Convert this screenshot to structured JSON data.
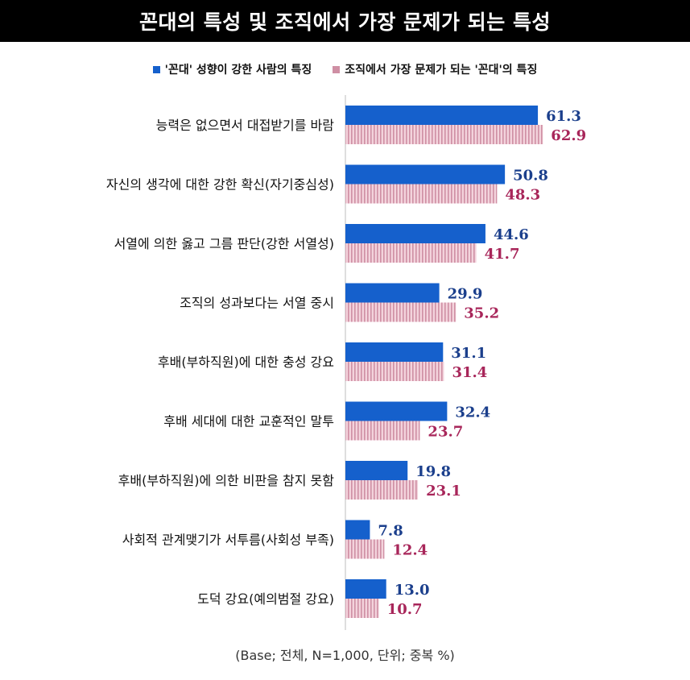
{
  "title": "꼰대의 특성 및 조직에서 가장 문제가 되는 특성",
  "footer": "(Base; 전체, N=1,000, 단위; 중복 %)",
  "colors": {
    "series1": "#1560cc",
    "series2_fill": "#f3d3dc",
    "series2_stripe": "#cf8fa4",
    "label1": "#1b3f8c",
    "label2": "#a8265a"
  },
  "chart_data": {
    "type": "bar",
    "orientation": "horizontal",
    "title": "꼰대의 특성 및 조직에서 가장 문제가 되는 특성",
    "categories": [
      "능력은 없으면서 대접받기를 바람",
      "자신의 생각에 대한 강한 확신(자기중심성)",
      "서열에 의한 옳고 그름 판단(강한 서열성)",
      "조직의 성과보다는 서열 중시",
      "후배(부하직원)에 대한 충성 강요",
      "후배 세대에 대한 교훈적인 말투",
      "후배(부하직원)에 의한 비판을 참지 못함",
      "사회적 관계맺기가 서투름(사회성 부족)",
      "도덕 강요(예의범절 강요)"
    ],
    "series": [
      {
        "name": "'꼰대' 성향이 강한 사람의 특징",
        "values": [
          61.3,
          50.8,
          44.6,
          29.9,
          31.1,
          32.4,
          19.8,
          7.8,
          13.0
        ],
        "labels": [
          "61.3",
          "50.8",
          "44.6",
          "29.9",
          "31.1",
          "32.4",
          "19.8",
          "7.8",
          "13.0"
        ]
      },
      {
        "name": "조직에서 가장 문제가 되는 '꼰대'의 특징",
        "values": [
          62.9,
          48.3,
          41.7,
          35.2,
          31.4,
          23.7,
          23.1,
          12.4,
          10.7
        ],
        "labels": [
          "62.9",
          "48.3",
          "41.7",
          "35.2",
          "31.4",
          "23.7",
          "23.1",
          "12.4",
          "10.7"
        ]
      }
    ],
    "xlim": [
      0,
      100
    ],
    "grid": false,
    "legend": "top-center"
  }
}
